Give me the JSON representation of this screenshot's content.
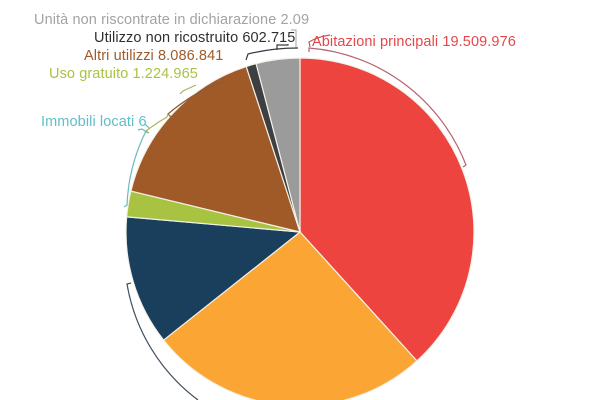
{
  "chart_data": {
    "type": "pie",
    "title": "",
    "center": [
      300,
      232
    ],
    "radius": 174,
    "start_angle_deg": 0,
    "direction": "clockwise",
    "slices": [
      {
        "name": "Abitazioni principali",
        "value_label": "19.509.976",
        "value": 19509976,
        "angle_deg": 137.8,
        "color": "#ee4440"
      },
      {
        "name": "(unlabeled orange slice)",
        "value_label": "",
        "value": null,
        "angle_deg": 93.8,
        "color": "#fba535"
      },
      {
        "name": "(unlabeled navy slice)",
        "value_label": "",
        "value": null,
        "angle_deg": 43.4,
        "color": "#193f5c"
      },
      {
        "name": "(unlabeled green slice)",
        "value_label": "",
        "value": null,
        "angle_deg": 8.6,
        "color": "#a8c341"
      },
      {
        "name": "(unlabeled brown slice)",
        "value_label": "",
        "value": null,
        "angle_deg": 58.4,
        "color": "#a05a28"
      },
      {
        "name": "(unlabeled dark-gray slice)",
        "value_label": "",
        "value": null,
        "angle_deg": 3.4,
        "color": "#3d3f42"
      },
      {
        "name": "(unlabeled light-gray slice)",
        "value_label": "",
        "value": null,
        "angle_deg": 14.6,
        "color": "#9b9b9b"
      }
    ],
    "labels": [
      {
        "text": "Unità non riscontrate in dichiarazione 2.09",
        "color": "#a3a3a3"
      },
      {
        "text": "Utilizzo non ricostruito 602.715",
        "color": "#2f2f2f"
      },
      {
        "text": "Altri utilizzi 8.086.841",
        "color": "#a05a28"
      },
      {
        "text": "Uso gratuito 1.224.965",
        "color": "#a8c341"
      },
      {
        "text": "Immobili locati 6",
        "color": "#5fbfc8"
      },
      {
        "text": "Abitazioni principali 19.509.976",
        "color": "#e2484a"
      }
    ],
    "legend": "none",
    "grid": false
  },
  "labels": {
    "unita_non_riscontrate": "Unità non riscontrate in dichiarazione 2.09",
    "utilizzo_non_ricostruito": "Utilizzo non ricostruito 602.715",
    "altri_utilizzi": "Altri utilizzi 8.086.841",
    "uso_gratuito": "Uso gratuito 1.224.965",
    "immobili_locati": "Immobili locati 6",
    "abitazioni_principali": "Abitazioni principali 19.509.976"
  }
}
